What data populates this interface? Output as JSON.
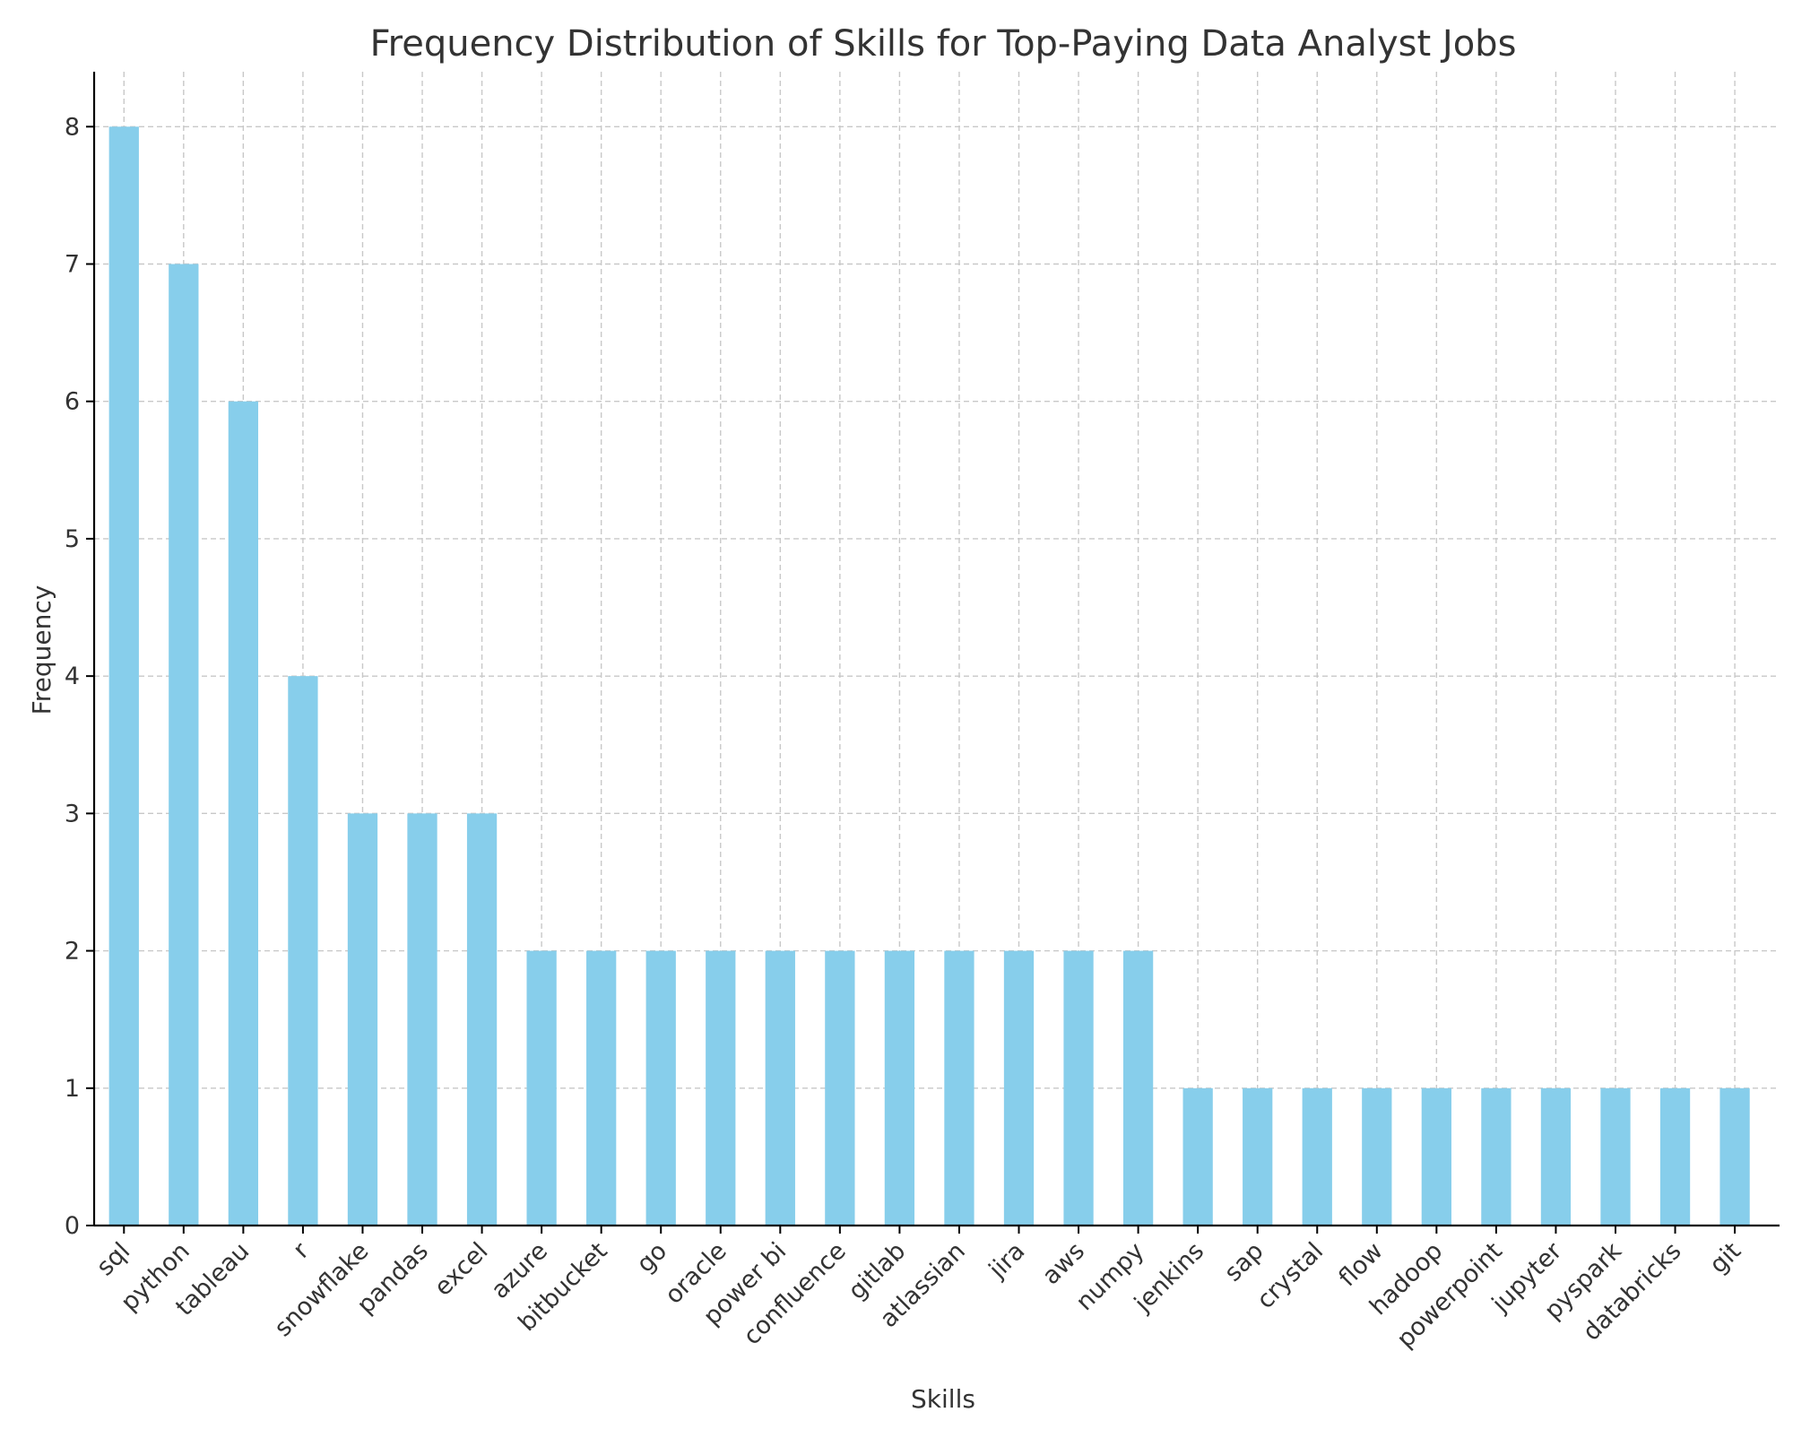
{
  "chart_data": {
    "type": "bar",
    "title": "Frequency Distribution of Skills for Top-Paying Data Analyst Jobs",
    "xlabel": "Skills",
    "ylabel": "Frequency",
    "categories": [
      "sql",
      "python",
      "tableau",
      "r",
      "snowflake",
      "pandas",
      "excel",
      "azure",
      "bitbucket",
      "go",
      "oracle",
      "power bi",
      "confluence",
      "gitlab",
      "atlassian",
      "jira",
      "aws",
      "numpy",
      "jenkins",
      "sap",
      "crystal",
      "flow",
      "hadoop",
      "powerpoint",
      "jupyter",
      "pyspark",
      "databricks",
      "git"
    ],
    "values": [
      8,
      7,
      6,
      4,
      3,
      3,
      3,
      2,
      2,
      2,
      2,
      2,
      2,
      2,
      2,
      2,
      2,
      2,
      1,
      1,
      1,
      1,
      1,
      1,
      1,
      1,
      1,
      1
    ],
    "ylim": [
      0,
      8.4
    ],
    "yticks": [
      0,
      1,
      2,
      3,
      4,
      5,
      6,
      7,
      8
    ],
    "grid": true,
    "bar_color": "#87ceeb"
  }
}
